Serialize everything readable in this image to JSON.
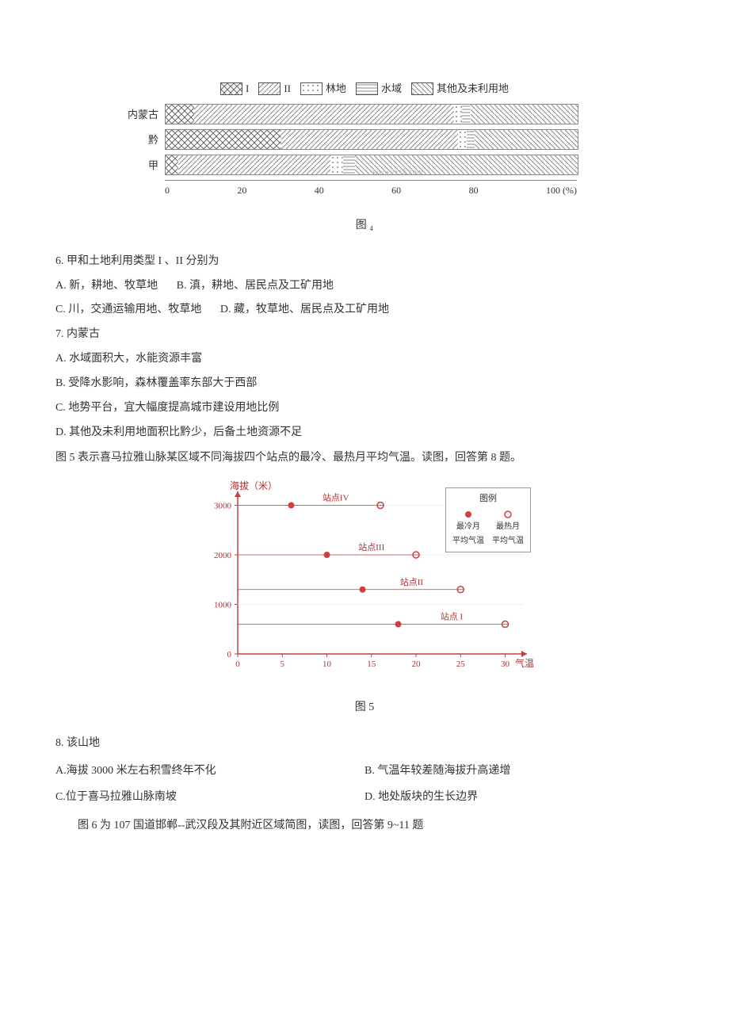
{
  "chart4": {
    "legend": [
      {
        "label": "I",
        "pattern": "crosshatch"
      },
      {
        "label": "II",
        "pattern": "diag"
      },
      {
        "label": "林地",
        "pattern": "dots"
      },
      {
        "label": "水域",
        "pattern": "hstripes"
      },
      {
        "label": "其他及未利用地",
        "pattern": "diag2"
      }
    ],
    "rows": [
      {
        "label": "内蒙古",
        "segments": [
          {
            "pct": 7,
            "pattern": "crosshatch"
          },
          {
            "pct": 63,
            "pattern": "diag"
          },
          {
            "pct": 2,
            "pattern": "dots"
          },
          {
            "pct": 2,
            "pattern": "hstripes"
          },
          {
            "pct": 26,
            "pattern": "diag2"
          }
        ]
      },
      {
        "label": "黔",
        "segments": [
          {
            "pct": 28,
            "pattern": "crosshatch"
          },
          {
            "pct": 43,
            "pattern": "diag"
          },
          {
            "pct": 2,
            "pattern": "dots"
          },
          {
            "pct": 2,
            "pattern": "hstripes"
          },
          {
            "pct": 25,
            "pattern": "diag2"
          }
        ]
      },
      {
        "label": "甲",
        "segments": [
          {
            "pct": 3,
            "pattern": "crosshatch"
          },
          {
            "pct": 37,
            "pattern": "diag"
          },
          {
            "pct": 3,
            "pattern": "dots"
          },
          {
            "pct": 3,
            "pattern": "hstripes"
          },
          {
            "pct": 54,
            "pattern": "diag2"
          }
        ]
      }
    ],
    "xticks": [
      "0",
      "20",
      "40",
      "60",
      "80",
      "100 (%)"
    ],
    "caption": "图 ₄",
    "watermark": "www.zxxk.com"
  },
  "q6": {
    "stem": "6. 甲和土地利用类型 I 、II 分别为",
    "opts": {
      "A": "A. 新，耕地、牧草地",
      "B": "B. 滇，耕地、居民点及工矿用地",
      "C": "C. 川，交通运输用地、牧草地",
      "D": "D. 藏，牧草地、居民点及工矿用地"
    }
  },
  "q7": {
    "stem": "7. 内蒙古",
    "opts": {
      "A": "A. 水域面积大，水能资源丰富",
      "B": "B. 受降水影响，森林覆盖率东部大于西部",
      "C": "C. 地势平台，宜大幅度提高城市建设用地比例",
      "D": "D. 其他及未利用地面积比黔少，后备土地资源不足"
    }
  },
  "intro5": "图 5 表示喜马拉雅山脉某区域不同海拔四个站点的最冷、最热月平均气温。读图，回答第 8 题。",
  "chart5": {
    "ylabel": "海拔（米）",
    "xlabel": "气温（℃）",
    "caption": "图 5",
    "ylim": [
      0,
      3200
    ],
    "xlim": [
      0,
      32
    ],
    "yticks": [
      0,
      1000,
      2000,
      3000
    ],
    "xticks": [
      0,
      5,
      10,
      15,
      20,
      25,
      30
    ],
    "stations": [
      {
        "name": "站点IV",
        "y": 3000,
        "cold_x": 6,
        "hot_x": 16
      },
      {
        "name": "站点III",
        "y": 2000,
        "cold_x": 10,
        "hot_x": 20
      },
      {
        "name": "站点II",
        "y": 1300,
        "cold_x": 14,
        "hot_x": 25
      },
      {
        "name": "站点 I",
        "y": 600,
        "cold_x": 18,
        "hot_x": 30
      }
    ],
    "legend_title": "图例",
    "legend_cold": "最冷月\n平均气温",
    "legend_hot": "最热月\n平均气温",
    "cold_color": "#d04040",
    "hot_color": "#d04040",
    "axis_color": "#c04040",
    "text_color": "#b03030"
  },
  "q8": {
    "stem": "8. 该山地",
    "opts": {
      "A": "A.海拔 3000 米左右积雪终年不化",
      "B": "B. 气温年较差随海拔升高递增",
      "C": "C.位于喜马拉雅山脉南坡",
      "D": "D. 地处版块的生长边界"
    }
  },
  "intro6": "图 6 为 107 国道邯郸--武汉段及其附近区域简图，读图，回答第 9~11 题"
}
